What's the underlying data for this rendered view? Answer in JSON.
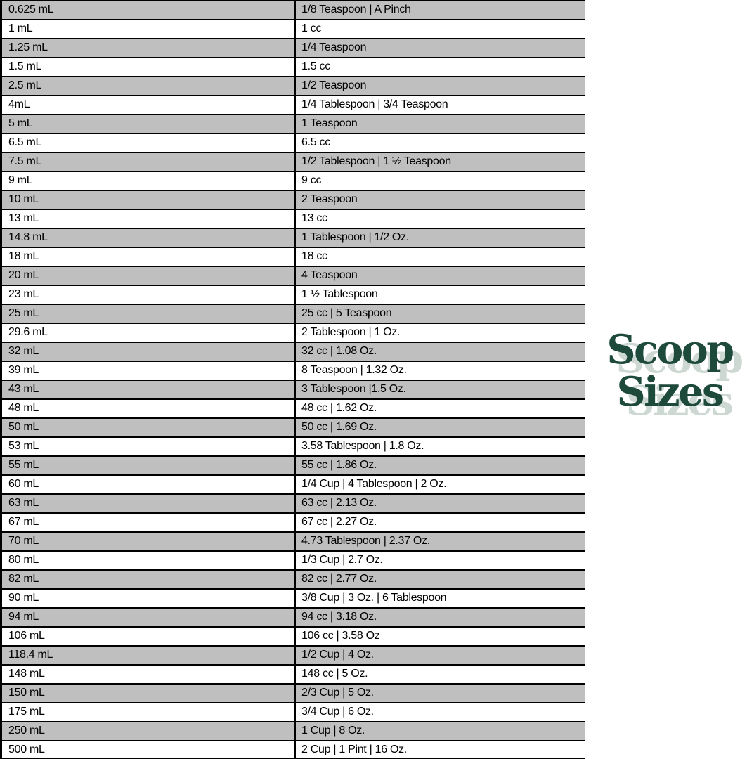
{
  "colors": {
    "row_alt": "#bfbfbf",
    "row_base": "#ffffff",
    "border": "#000000",
    "text": "#000000",
    "logo_green": "#1e4a3c",
    "logo_shadow": "#ccd8d1",
    "page_bg": "#ffffff"
  },
  "logo": {
    "line1": "Scoop",
    "line2": "Sizes"
  },
  "table": {
    "rows": [
      {
        "ml": "0.625 mL",
        "equivalent": "1/8 Teaspoon | A Pinch"
      },
      {
        "ml": "1 mL",
        "equivalent": "1 cc"
      },
      {
        "ml": "1.25 mL",
        "equivalent": "1/4 Teaspoon"
      },
      {
        "ml": "1.5 mL",
        "equivalent": "1.5 cc"
      },
      {
        "ml": "2.5 mL",
        "equivalent": "1/2 Teaspoon"
      },
      {
        "ml": "4mL",
        "equivalent": "1/4 Tablespoon | 3/4 Teaspoon"
      },
      {
        "ml": "5 mL",
        "equivalent": "1 Teaspoon"
      },
      {
        "ml": "6.5 mL",
        "equivalent": "6.5 cc"
      },
      {
        "ml": "7.5 mL",
        "equivalent": "1/2 Tablespoon | 1 ½ Teaspoon"
      },
      {
        "ml": "9 mL",
        "equivalent": "9 cc"
      },
      {
        "ml": "10 mL",
        "equivalent": "2 Teaspoon"
      },
      {
        "ml": "13 mL",
        "equivalent": "13 cc"
      },
      {
        "ml": "14.8 mL",
        "equivalent": "1 Tablespoon | 1/2 Oz."
      },
      {
        "ml": "18 mL",
        "equivalent": "18 cc"
      },
      {
        "ml": "20 mL",
        "equivalent": "4 Teaspoon"
      },
      {
        "ml": "23 mL",
        "equivalent": "1 ½ Tablespoon"
      },
      {
        "ml": "25 mL",
        "equivalent": "25 cc | 5 Teaspoon"
      },
      {
        "ml": "29.6 mL",
        "equivalent": "2 Tablespoon | 1 Oz."
      },
      {
        "ml": "32 mL",
        "equivalent": "32 cc | 1.08 Oz."
      },
      {
        "ml": "39 mL",
        "equivalent": "8 Teaspoon | 1.32 Oz."
      },
      {
        "ml": "43 mL",
        "equivalent": "3 Tablespoon |1.5 Oz."
      },
      {
        "ml": "48 mL",
        "equivalent": "48 cc | 1.62 Oz."
      },
      {
        "ml": "50 mL",
        "equivalent": "50 cc | 1.69 Oz."
      },
      {
        "ml": "53 mL",
        "equivalent": "3.58 Tablespoon | 1.8 Oz."
      },
      {
        "ml": "55 mL",
        "equivalent": "55 cc | 1.86 Oz."
      },
      {
        "ml": "60 mL",
        "equivalent": "1/4 Cup | 4 Tablespoon | 2 Oz."
      },
      {
        "ml": "63 mL",
        "equivalent": "63 cc | 2.13 Oz."
      },
      {
        "ml": "67 mL",
        "equivalent": "67 cc | 2.27 Oz."
      },
      {
        "ml": "70 mL",
        "equivalent": "4.73 Tablespoon | 2.37 Oz."
      },
      {
        "ml": "80 mL",
        "equivalent": "1/3 Cup | 2.7 Oz."
      },
      {
        "ml": "82 mL",
        "equivalent": "82 cc | 2.77 Oz."
      },
      {
        "ml": "90 mL",
        "equivalent": "3/8 Cup | 3 Oz. | 6 Tablespoon"
      },
      {
        "ml": "94 mL",
        "equivalent": "94 cc | 3.18 Oz."
      },
      {
        "ml": "106 mL",
        "equivalent": "106 cc | 3.58 Oz"
      },
      {
        "ml": "118.4 mL",
        "equivalent": "1/2 Cup | 4 Oz."
      },
      {
        "ml": "148 mL",
        "equivalent": "148 cc | 5 Oz."
      },
      {
        "ml": "150 mL",
        "equivalent": "2/3 Cup | 5 Oz."
      },
      {
        "ml": "175 mL",
        "equivalent": "3/4 Cup | 6 Oz."
      },
      {
        "ml": "250 mL",
        "equivalent": "1 Cup | 8 Oz."
      },
      {
        "ml": "500 mL",
        "equivalent": "2 Cup | 1 Pint | 16 Oz."
      }
    ]
  }
}
